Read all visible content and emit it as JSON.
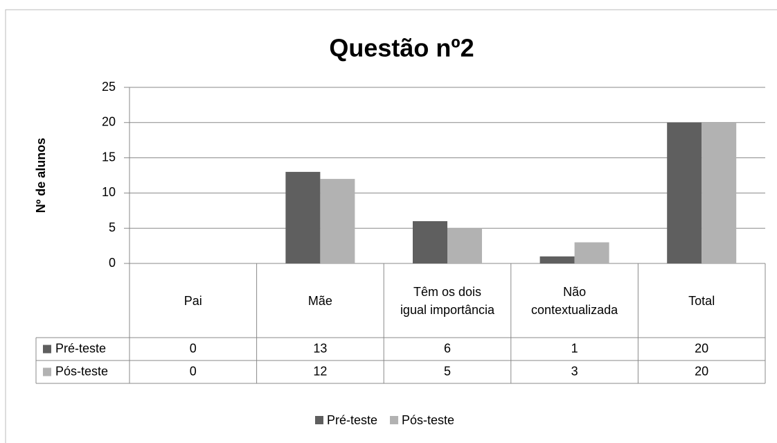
{
  "chart_data": {
    "type": "bar",
    "title": "Questão nº2",
    "y_label": "Nº de alunos",
    "categories": [
      "Pai",
      "Mãe",
      "Têm os dois igual importância",
      "Não contextualizada",
      "Total"
    ],
    "series": [
      {
        "name": "Pré-teste",
        "color": "#5f5f5f",
        "values": [
          0,
          13,
          6,
          1,
          20
        ]
      },
      {
        "name": "Pós-teste",
        "color": "#b2b2b2",
        "values": [
          0,
          12,
          5,
          3,
          20
        ]
      }
    ],
    "ylim": [
      0,
      25
    ],
    "yticks": [
      0,
      5,
      10,
      15,
      20,
      25
    ],
    "grid": true,
    "legend": "bottom"
  }
}
